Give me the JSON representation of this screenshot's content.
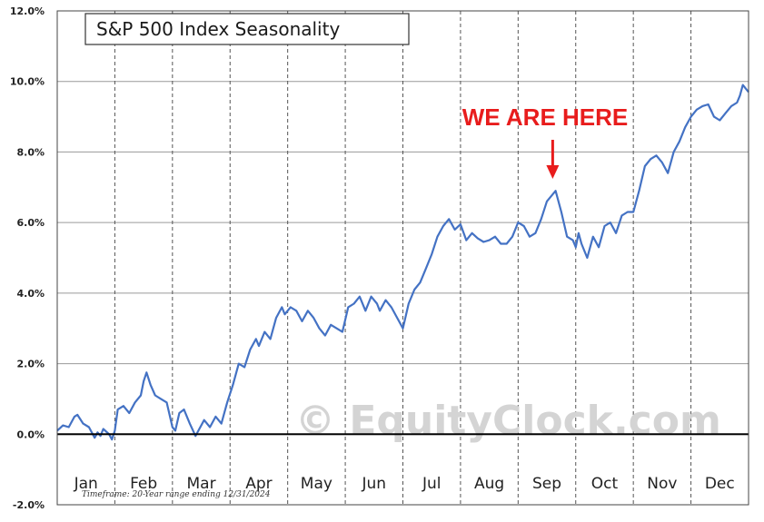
{
  "chart_data": {
    "type": "line",
    "title": "S&P 500 Index Seasonality",
    "footnote": "Timeframe: 20-Year range ending 12/31/2024",
    "watermark": "© EquityClock.com",
    "annotation": {
      "text": "WE ARE HERE",
      "color": "#e81c1c",
      "target_x": 8.6
    },
    "line_color": "#4472c4",
    "grid": true,
    "xlim": [
      0,
      12
    ],
    "ylim": [
      -2,
      12
    ],
    "y_ticks": [
      "-2.0%",
      "0.0%",
      "2.0%",
      "4.0%",
      "6.0%",
      "8.0%",
      "10.0%",
      "12.0%"
    ],
    "y_tick_values": [
      -2,
      0,
      2,
      4,
      6,
      8,
      10,
      12
    ],
    "months": [
      "Jan",
      "Feb",
      "Mar",
      "Apr",
      "May",
      "Jun",
      "Jul",
      "Aug",
      "Sep",
      "Oct",
      "Nov",
      "Dec"
    ],
    "series": [
      {
        "x": [
          0,
          0.1,
          0.2,
          0.3,
          0.35,
          0.45,
          0.55,
          0.65,
          0.7,
          0.75,
          0.8,
          0.9,
          0.95,
          1.0,
          1.05,
          1.15,
          1.25,
          1.35,
          1.45,
          1.5,
          1.55,
          1.62,
          1.7,
          1.8,
          1.9,
          2.0,
          2.05,
          2.12,
          2.2,
          2.3,
          2.4,
          2.45,
          2.55,
          2.65,
          2.75,
          2.85,
          2.95,
          3.05,
          3.15,
          3.25,
          3.35,
          3.45,
          3.5,
          3.6,
          3.7,
          3.8,
          3.9,
          3.95,
          4.05,
          4.15,
          4.25,
          4.35,
          4.45,
          4.55,
          4.65,
          4.75,
          4.85,
          4.95,
          5.05,
          5.15,
          5.25,
          5.35,
          5.45,
          5.55,
          5.6,
          5.7,
          5.8,
          5.9,
          6.0,
          6.1,
          6.2,
          6.3,
          6.4,
          6.5,
          6.6,
          6.7,
          6.8,
          6.9,
          7.0,
          7.1,
          7.2,
          7.3,
          7.4,
          7.5,
          7.6,
          7.7,
          7.8,
          7.9,
          8.0,
          8.1,
          8.2,
          8.3,
          8.4,
          8.5,
          8.55,
          8.65,
          8.75,
          8.85,
          8.95,
          9.0,
          9.05,
          9.1,
          9.2,
          9.3,
          9.4,
          9.5,
          9.6,
          9.7,
          9.8,
          9.9,
          10.0,
          10.1,
          10.2,
          10.3,
          10.4,
          10.5,
          10.6,
          10.7,
          10.8,
          10.9,
          11.0,
          11.1,
          11.2,
          11.3,
          11.4,
          11.5,
          11.6,
          11.7,
          11.8,
          11.85,
          11.9,
          12.0
        ],
        "values": [
          0.1,
          0.25,
          0.2,
          0.5,
          0.55,
          0.3,
          0.2,
          -0.1,
          0.05,
          -0.05,
          0.15,
          0.0,
          -0.15,
          0.1,
          0.7,
          0.8,
          0.6,
          0.9,
          1.1,
          1.5,
          1.75,
          1.4,
          1.1,
          1.0,
          0.9,
          0.2,
          0.1,
          0.6,
          0.7,
          0.3,
          -0.05,
          0.1,
          0.4,
          0.2,
          0.5,
          0.3,
          0.9,
          1.4,
          2.0,
          1.9,
          2.4,
          2.7,
          2.5,
          2.9,
          2.7,
          3.3,
          3.6,
          3.4,
          3.6,
          3.5,
          3.2,
          3.5,
          3.3,
          3.0,
          2.8,
          3.1,
          3.0,
          2.9,
          3.6,
          3.7,
          3.9,
          3.5,
          3.9,
          3.7,
          3.5,
          3.8,
          3.6,
          3.3,
          3.0,
          3.7,
          4.1,
          4.3,
          4.7,
          5.1,
          5.6,
          5.9,
          6.1,
          5.8,
          5.95,
          5.5,
          5.7,
          5.55,
          5.45,
          5.5,
          5.6,
          5.4,
          5.4,
          5.6,
          6.0,
          5.9,
          5.6,
          5.7,
          6.1,
          6.6,
          6.7,
          6.9,
          6.3,
          5.6,
          5.5,
          5.3,
          5.7,
          5.4,
          5.0,
          5.6,
          5.3,
          5.9,
          6.0,
          5.7,
          6.2,
          6.3,
          6.3,
          6.9,
          7.6,
          7.8,
          7.9,
          7.7,
          7.4,
          8.0,
          8.3,
          8.7,
          9.0,
          9.2,
          9.3,
          9.35,
          9.0,
          8.9,
          9.1,
          9.3,
          9.4,
          9.6,
          9.9,
          9.7
        ]
      }
    ]
  }
}
